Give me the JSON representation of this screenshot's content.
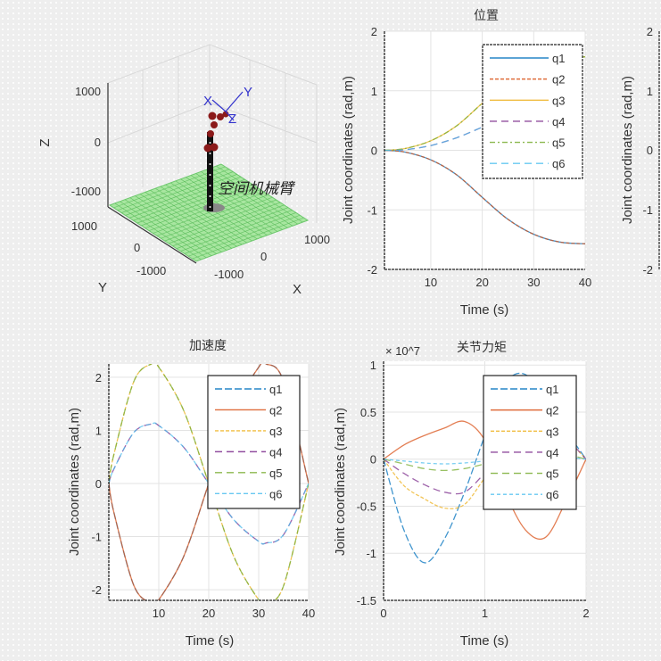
{
  "robot_panel": {
    "z_label": "Z",
    "y_label": "Y",
    "x_label": "X",
    "z_ticks": [
      "1000",
      "0",
      "-1000"
    ],
    "y_ticks": [
      "1000",
      "0",
      "-1000"
    ],
    "x_ticks": [
      "1000",
      "0",
      "-1000"
    ],
    "robot_name": "空间机械臂",
    "frame_labels": [
      "X",
      "Y",
      "Z"
    ],
    "colors": {
      "floor": "#7fd97f",
      "links": "#111111",
      "joints": "#8b1a1a",
      "frame": "#3333cc"
    }
  },
  "partial_panel": {
    "ylabel": "Joint coordinates (rad,m)",
    "y_ticks": [
      "2",
      "1",
      "0",
      "-1",
      "-2"
    ]
  },
  "chart_data": [
    {
      "type": "line",
      "title": "位置",
      "xlabel": "Time (s)",
      "ylabel": "Joint coordinates (rad,m)",
      "xlim": [
        1,
        40
      ],
      "ylim": [
        -2,
        2
      ],
      "x_ticks": [
        "10",
        "20",
        "30",
        "40"
      ],
      "y_ticks": [
        "2",
        "1",
        "0",
        "-1",
        "-2"
      ],
      "grid": true,
      "legend": "top-right",
      "x": [
        1,
        5,
        10,
        15,
        20,
        25,
        30,
        35,
        40
      ],
      "series": [
        {
          "name": "q1",
          "color": "#0072BD",
          "values": [
            0,
            -0.03,
            -0.16,
            -0.41,
            -0.79,
            -1.16,
            -1.41,
            -1.54,
            -1.57
          ]
        },
        {
          "name": "q2",
          "color": "#D95319",
          "values": [
            0,
            -0.03,
            -0.16,
            -0.41,
            -0.79,
            -1.16,
            -1.41,
            -1.54,
            -1.57
          ]
        },
        {
          "name": "q3",
          "color": "#EDB120",
          "values": [
            0,
            0.03,
            0.16,
            0.41,
            0.79,
            1.16,
            1.41,
            1.54,
            1.57
          ]
        },
        {
          "name": "q4",
          "color": "#7E2F8E",
          "values": [
            0,
            0.01,
            0.08,
            0.21,
            0.39,
            0.58,
            0.7,
            0.77,
            0.79
          ]
        },
        {
          "name": "q5",
          "color": "#77AC30",
          "values": [
            0,
            0.03,
            0.16,
            0.41,
            0.79,
            1.16,
            1.41,
            1.54,
            1.57
          ]
        },
        {
          "name": "q6",
          "color": "#4DBEEE",
          "values": [
            0,
            0.01,
            0.08,
            0.21,
            0.39,
            0.58,
            0.7,
            0.77,
            0.79
          ]
        }
      ]
    },
    {
      "type": "line",
      "title": "加速度",
      "xlabel": "Time (s)",
      "ylabel": "Joint coordinates (rad,m)",
      "xlim": [
        0,
        40
      ],
      "ylim": [
        -2.2,
        2.25
      ],
      "x_ticks": [
        "10",
        "20",
        "30",
        "40"
      ],
      "y_ticks": [
        "2",
        "1",
        "0",
        "-1",
        "-2"
      ],
      "grid": true,
      "legend": "top-right",
      "x": [
        0,
        1,
        5,
        8.5,
        10,
        15,
        20,
        25,
        30,
        31.5,
        35,
        40
      ],
      "series": [
        {
          "name": "q1",
          "color": "#0072BD",
          "values": [
            0,
            -0.54,
            -1.92,
            -2.25,
            -2.19,
            -1.37,
            0,
            1.37,
            2.19,
            2.25,
            1.92,
            0
          ]
        },
        {
          "name": "q2",
          "color": "#D95319",
          "values": [
            0,
            -0.54,
            -1.92,
            -2.25,
            -2.19,
            -1.37,
            0,
            1.37,
            2.19,
            2.25,
            1.92,
            0
          ]
        },
        {
          "name": "q3",
          "color": "#EDB120",
          "values": [
            0,
            0.54,
            1.92,
            2.25,
            2.19,
            1.37,
            0,
            -1.37,
            -2.19,
            -2.25,
            -1.92,
            0
          ]
        },
        {
          "name": "q4",
          "color": "#7E2F8E",
          "values": [
            0,
            0.27,
            0.96,
            1.12,
            1.09,
            0.68,
            0,
            -0.68,
            -1.09,
            -1.12,
            -0.96,
            0
          ]
        },
        {
          "name": "q5",
          "color": "#77AC30",
          "values": [
            0,
            0.54,
            1.92,
            2.25,
            2.19,
            1.37,
            0,
            -1.37,
            -2.19,
            -2.25,
            -1.92,
            0
          ]
        },
        {
          "name": "q6",
          "color": "#4DBEEE",
          "values": [
            0,
            0.27,
            0.96,
            1.12,
            1.09,
            0.68,
            0,
            -0.68,
            -1.09,
            -1.12,
            -0.96,
            0
          ]
        }
      ]
    },
    {
      "type": "line",
      "title": "关节力矩",
      "exponent_label": "× 10^7",
      "xlabel": "Time (s)",
      "ylabel": "Joint coordinates (rad,m)",
      "xlim": [
        0,
        2
      ],
      "ylim": [
        -1.5,
        1.04
      ],
      "x_ticks": [
        "0",
        "1",
        "2"
      ],
      "y_ticks": [
        "1",
        "0.5",
        "0",
        "-0.5",
        "-1",
        "-1.5"
      ],
      "grid": true,
      "legend": "top-right",
      "x": [
        0,
        0.2,
        0.4,
        0.6,
        0.8,
        1.0,
        1.2,
        1.4,
        1.6,
        1.8,
        2.0
      ],
      "series": [
        {
          "name": "q1",
          "color": "#0072BD",
          "values": [
            0,
            -0.75,
            -1.1,
            -0.85,
            -0.35,
            0.25,
            0.8,
            0.9,
            0.6,
            0.3,
            0
          ]
        },
        {
          "name": "q2",
          "color": "#D95319",
          "values": [
            0,
            0.15,
            0.25,
            0.33,
            0.4,
            0.2,
            -0.35,
            -0.75,
            -0.83,
            -0.45,
            0
          ]
        },
        {
          "name": "q3",
          "color": "#EDB120",
          "values": [
            0,
            -0.28,
            -0.42,
            -0.52,
            -0.48,
            -0.2,
            0.05,
            0.15,
            0.2,
            0.2,
            0
          ]
        },
        {
          "name": "q4",
          "color": "#7E2F8E",
          "values": [
            0,
            -0.15,
            -0.27,
            -0.35,
            -0.35,
            -0.15,
            0.05,
            0.1,
            0.15,
            0.2,
            0
          ]
        },
        {
          "name": "q5",
          "color": "#77AC30",
          "values": [
            0,
            -0.05,
            -0.1,
            -0.12,
            -0.1,
            -0.05,
            0,
            0.05,
            0.05,
            0.05,
            0
          ]
        },
        {
          "name": "q6",
          "color": "#4DBEEE",
          "values": [
            0,
            -0.02,
            -0.04,
            -0.05,
            -0.04,
            -0.02,
            0,
            0.02,
            0.02,
            0.02,
            0
          ]
        }
      ]
    }
  ]
}
